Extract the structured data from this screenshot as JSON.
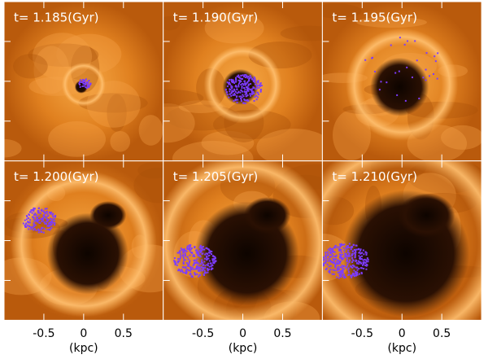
{
  "panels": [
    {
      "label": "t= 1.185(Gyr)"
    },
    {
      "label": "t= 1.190(Gyr)"
    },
    {
      "label": "t= 1.195(Gyr)"
    },
    {
      "label": "t= 1.200(Gyr)"
    },
    {
      "label": "t= 1.205(Gyr)"
    },
    {
      "label": "t= 1.210(Gyr)"
    }
  ],
  "axis": {
    "xlim": [
      -1,
      1
    ],
    "xticks": [
      -0.5,
      0,
      0.5
    ],
    "label": "(kpc)"
  }
}
